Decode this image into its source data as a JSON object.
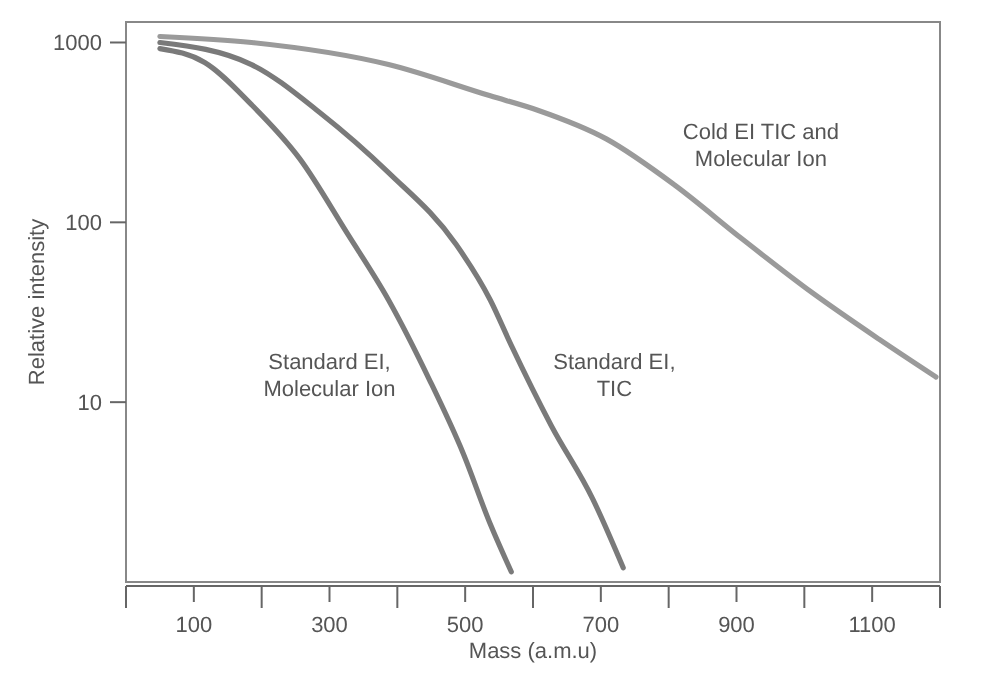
{
  "chart_data": {
    "type": "line",
    "xlabel": "Mass (a.m.u)",
    "ylabel": "Relative intensity",
    "log": "y",
    "grid": false,
    "marker": "none",
    "line_style": "solid",
    "xlim": [
      0,
      1200
    ],
    "xticks": [
      {
        "value": 0,
        "label": null
      },
      100,
      {
        "value": 200,
        "label": null
      },
      300,
      {
        "value": 400,
        "label": null
      },
      500,
      {
        "value": 600,
        "label": null
      },
      700,
      {
        "value": 800,
        "label": null
      },
      900,
      {
        "value": 1000,
        "label": null
      },
      1100,
      {
        "value": 1200,
        "label": null
      }
    ],
    "ylim": [
      1,
      1300
    ],
    "yticks": [
      10,
      100,
      1000
    ],
    "series": [
      {
        "color": "#7a7a7a",
        "x": [
          50,
          116,
          185,
          256,
          326,
          387,
          447,
          497,
          537,
          568
        ],
        "values": [
          925,
          774,
          451,
          226,
          87,
          37,
          13.4,
          5.2,
          2.1,
          1.14
        ]
      },
      {
        "color": "#7a7a7a",
        "x": [
          50,
          185,
          286,
          387,
          487,
          537,
          568,
          627,
          688,
          733
        ],
        "values": [
          1000,
          754,
          407,
          189,
          75,
          37,
          20.7,
          7.4,
          2.9,
          1.2
        ]
      },
      {
        "color": "#9a9a9a",
        "x": [
          50,
          185,
          387,
          537,
          607,
          708,
          809,
          908,
          1010,
          1110,
          1194
        ],
        "values": [
          1080,
          1000,
          754,
          505,
          420,
          291,
          161,
          81,
          41,
          22.4,
          13.8
        ]
      }
    ],
    "annotations": [
      "Standard EI,\nMolecular Ion",
      "Standard EI,\nTIC",
      "Cold EI TIC and\nMolecular Ion"
    ]
  }
}
